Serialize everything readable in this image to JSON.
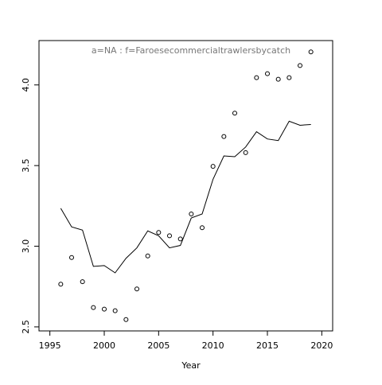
{
  "chart_data": {
    "type": "scatter",
    "annotation": "a=NA  :  f=Faroesecommercialtrawlersbycatch",
    "x_label": "Year",
    "x": [
      1996,
      1997,
      1998,
      1999,
      2000,
      2001,
      2002,
      2003,
      2004,
      2005,
      2006,
      2007,
      2008,
      2009,
      2010,
      2011,
      2012,
      2013,
      2014,
      2015,
      2016,
      2017,
      2018,
      2019
    ],
    "series": [
      {
        "mark": "point",
        "color": "#000000",
        "values": [
          2.765,
          2.93,
          2.78,
          2.62,
          2.61,
          2.6,
          2.545,
          2.735,
          2.94,
          3.085,
          3.065,
          3.045,
          3.2,
          3.115,
          3.495,
          3.68,
          3.825,
          3.58,
          4.045,
          4.07,
          4.035,
          4.045,
          4.12,
          4.205
        ]
      },
      {
        "mark": "line",
        "color": "#000000",
        "values": [
          3.235,
          3.12,
          3.1,
          2.875,
          2.88,
          2.835,
          2.925,
          2.99,
          3.095,
          3.065,
          2.99,
          3.005,
          3.175,
          3.2,
          3.415,
          3.56,
          3.555,
          3.615,
          3.71,
          3.665,
          3.655,
          3.775,
          3.75,
          3.755
        ]
      }
    ],
    "xlim": [
      1994,
      2021
    ],
    "xticks": [
      1995,
      2000,
      2005,
      2010,
      2015,
      2020
    ],
    "ylim": [
      2.475,
      4.275
    ],
    "yticks": [
      {
        "value": 2.5,
        "label": "2.5"
      },
      {
        "value": 3,
        "label": "3.0"
      },
      {
        "value": 3.5,
        "label": "3.5"
      },
      {
        "value": 4,
        "label": "4.0"
      }
    ]
  }
}
